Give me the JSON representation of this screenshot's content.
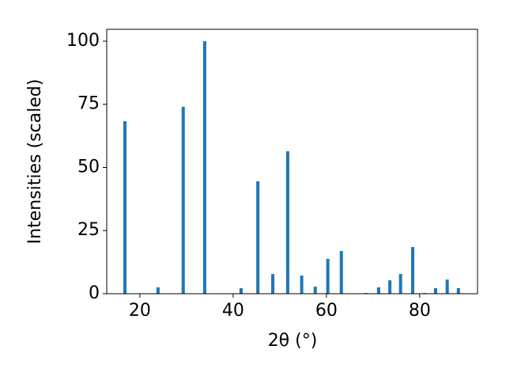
{
  "chart_data": {
    "type": "bar",
    "x": [
      16.8,
      23.9,
      29.3,
      33.9,
      41.7,
      45.3,
      48.5,
      51.7,
      54.7,
      57.6,
      60.3,
      63.2,
      68.5,
      71.2,
      73.6,
      75.9,
      78.5,
      81.0,
      83.4,
      85.9,
      88.3
    ],
    "values": [
      68.3,
      2.5,
      74,
      100,
      2.2,
      44.5,
      7.8,
      56.4,
      7.2,
      2.8,
      13.8,
      16.9,
      0.3,
      2.5,
      5.3,
      7.8,
      18.5,
      0.3,
      2.2,
      5.6,
      2.2
    ],
    "color": "#1f77b4",
    "xlabel": "2θ (°)",
    "ylabel": "Intensities (scaled)",
    "xlim": [
      12.9,
      92.4
    ],
    "xticks": [
      20,
      40,
      60,
      80
    ],
    "ylim": [
      0,
      104.7
    ],
    "yticks": [
      0,
      25,
      50,
      75,
      100
    ],
    "grid": false
  }
}
